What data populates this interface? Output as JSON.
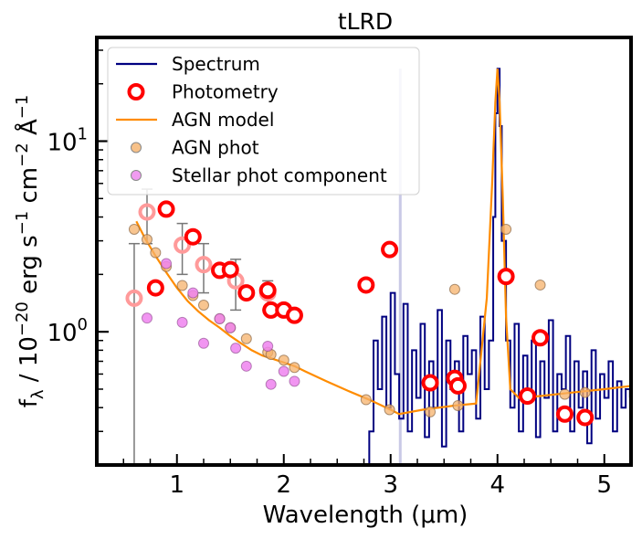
{
  "chart_data": {
    "type": "line",
    "title": "tLRD",
    "xlabel": "Wavelength (μm)",
    "ylabel_parts": {
      "f": "f",
      "sub": "λ",
      "mid": " / 10",
      "exp1": "−20",
      "mid2": " erg s",
      "exp2": "−1",
      "mid3": " cm",
      "exp3": "−2",
      "mid4": " Å",
      "exp4": "−1"
    },
    "xlim": [
      0.25,
      5.25
    ],
    "ylim": [
      0.2,
      35
    ],
    "yscale": "log",
    "x_ticks": [
      1,
      2,
      3,
      4,
      5
    ],
    "x_tick_labels": [
      "1",
      "2",
      "3",
      "4",
      "5"
    ],
    "y_major_ticks": [
      1,
      10
    ],
    "y_tick_labels": [
      {
        "base": "10",
        "exp": "0"
      },
      {
        "base": "10",
        "exp": "1"
      }
    ],
    "legend": {
      "position": "top-left",
      "entries": [
        {
          "label": "Spectrum",
          "kind": "line",
          "color": "#000080"
        },
        {
          "label": "Photometry",
          "kind": "ring",
          "color": "#ff0000"
        },
        {
          "label": "AGN model",
          "kind": "line",
          "color": "#ff8c00"
        },
        {
          "label": "AGN phot",
          "kind": "dot",
          "color": "#f5b26b"
        },
        {
          "label": "Stellar phot component",
          "kind": "dot",
          "color": "#ee82ee"
        }
      ]
    },
    "colors": {
      "spectrum": "#000080",
      "photometry": "#ff0000",
      "photometry_faded": "#ff9a9a",
      "agn_model": "#ff8c00",
      "agn_phot": "#f5b26b",
      "stellar_phot": "#ee82ee",
      "errorbar": "#777777"
    },
    "agn_model": {
      "x": [
        0.62,
        0.7,
        0.8,
        0.9,
        1.0,
        1.1,
        1.2,
        1.3,
        1.4,
        1.5,
        1.6,
        1.7,
        1.8,
        1.9,
        2.0,
        2.1,
        2.2,
        2.4,
        2.6,
        2.8,
        3.0,
        3.08,
        3.3,
        3.6,
        3.8,
        3.9,
        3.95,
        3.98,
        4.0,
        4.02,
        4.05,
        4.08,
        4.12,
        4.2,
        4.4,
        4.7,
        5.0,
        5.25
      ],
      "y": [
        3.8,
        3.1,
        2.5,
        2.05,
        1.7,
        1.45,
        1.28,
        1.15,
        1.05,
        0.95,
        0.87,
        0.8,
        0.75,
        0.72,
        0.69,
        0.66,
        0.62,
        0.55,
        0.49,
        0.44,
        0.39,
        0.37,
        0.39,
        0.41,
        0.42,
        1.5,
        6.0,
        16.0,
        24.0,
        16.0,
        5.0,
        1.2,
        0.5,
        0.45,
        0.46,
        0.48,
        0.5,
        0.52
      ]
    },
    "photometry": [
      {
        "x": 0.8,
        "y": 1.7
      },
      {
        "x": 0.9,
        "y": 4.4
      },
      {
        "x": 1.15,
        "y": 3.15
      },
      {
        "x": 1.4,
        "y": 2.1
      },
      {
        "x": 1.5,
        "y": 2.12
      },
      {
        "x": 1.65,
        "y": 1.6
      },
      {
        "x": 1.85,
        "y": 1.65
      },
      {
        "x": 1.88,
        "y": 1.3
      },
      {
        "x": 2.0,
        "y": 1.3
      },
      {
        "x": 2.1,
        "y": 1.22
      },
      {
        "x": 2.77,
        "y": 1.76
      },
      {
        "x": 2.99,
        "y": 2.7
      },
      {
        "x": 3.37,
        "y": 0.54
      },
      {
        "x": 3.6,
        "y": 0.57
      },
      {
        "x": 3.63,
        "y": 0.52
      },
      {
        "x": 4.08,
        "y": 1.95
      },
      {
        "x": 4.28,
        "y": 0.46
      },
      {
        "x": 4.4,
        "y": 0.93
      },
      {
        "x": 4.63,
        "y": 0.37
      },
      {
        "x": 4.82,
        "y": 0.355
      }
    ],
    "photometry_faded": [
      {
        "x": 0.6,
        "y": 1.5,
        "ylo": 0.2,
        "yhi": 2.9
      },
      {
        "x": 0.72,
        "y": 4.25,
        "ylo": 2.9,
        "yhi": 5.6
      },
      {
        "x": 1.05,
        "y": 2.85,
        "ylo": 2.0,
        "yhi": 3.7
      },
      {
        "x": 1.25,
        "y": 2.25,
        "ylo": 1.6,
        "yhi": 2.9
      },
      {
        "x": 1.55,
        "y": 1.85,
        "ylo": 1.3,
        "yhi": 2.4
      },
      {
        "x": 1.85,
        "y": 1.6,
        "ylo": 1.3,
        "yhi": 1.85
      }
    ],
    "agn_phot": [
      {
        "x": 0.6,
        "y": 3.45
      },
      {
        "x": 0.72,
        "y": 3.05
      },
      {
        "x": 0.8,
        "y": 2.6
      },
      {
        "x": 0.9,
        "y": 2.2
      },
      {
        "x": 1.05,
        "y": 1.75
      },
      {
        "x": 1.15,
        "y": 1.55
      },
      {
        "x": 1.25,
        "y": 1.38
      },
      {
        "x": 1.4,
        "y": 1.17
      },
      {
        "x": 1.5,
        "y": 1.05
      },
      {
        "x": 1.65,
        "y": 0.92
      },
      {
        "x": 1.85,
        "y": 0.78
      },
      {
        "x": 1.88,
        "y": 0.76
      },
      {
        "x": 2.0,
        "y": 0.71
      },
      {
        "x": 2.1,
        "y": 0.65
      },
      {
        "x": 2.77,
        "y": 0.44
      },
      {
        "x": 2.99,
        "y": 0.39
      },
      {
        "x": 3.37,
        "y": 0.38
      },
      {
        "x": 3.6,
        "y": 1.67
      },
      {
        "x": 3.63,
        "y": 0.41
      },
      {
        "x": 4.08,
        "y": 3.45
      },
      {
        "x": 4.28,
        "y": 0.45
      },
      {
        "x": 4.4,
        "y": 1.76
      },
      {
        "x": 4.63,
        "y": 0.47
      },
      {
        "x": 4.82,
        "y": 0.48
      }
    ],
    "stellar_phot": [
      {
        "x": 0.72,
        "y": 1.18
      },
      {
        "x": 0.9,
        "y": 2.28
      },
      {
        "x": 1.05,
        "y": 1.12
      },
      {
        "x": 1.15,
        "y": 1.6
      },
      {
        "x": 1.25,
        "y": 0.87
      },
      {
        "x": 1.4,
        "y": 1.17
      },
      {
        "x": 1.5,
        "y": 1.05
      },
      {
        "x": 1.55,
        "y": 0.82
      },
      {
        "x": 1.65,
        "y": 0.66
      },
      {
        "x": 1.85,
        "y": 0.84
      },
      {
        "x": 1.88,
        "y": 0.53
      },
      {
        "x": 2.0,
        "y": 0.62
      },
      {
        "x": 2.1,
        "y": 0.55
      }
    ],
    "spectrum": {
      "description_free_note": "",
      "x": [
        2.8,
        2.84,
        2.88,
        2.92,
        2.96,
        3.0,
        3.04,
        3.08,
        3.12,
        3.16,
        3.2,
        3.24,
        3.28,
        3.32,
        3.36,
        3.4,
        3.44,
        3.48,
        3.52,
        3.56,
        3.6,
        3.64,
        3.68,
        3.72,
        3.76,
        3.8,
        3.84,
        3.88,
        3.92,
        3.96,
        3.98,
        4.0,
        4.02,
        4.04,
        4.08,
        4.12,
        4.16,
        4.2,
        4.24,
        4.28,
        4.32,
        4.36,
        4.4,
        4.44,
        4.48,
        4.52,
        4.56,
        4.6,
        4.64,
        4.68,
        4.72,
        4.76,
        4.8,
        4.84,
        4.88,
        4.92,
        4.96,
        5.0,
        5.04,
        5.08,
        5.12,
        5.16,
        5.2,
        5.24
      ],
      "y": [
        0.3,
        0.9,
        0.5,
        1.2,
        0.4,
        1.6,
        0.6,
        0.35,
        1.4,
        0.3,
        0.8,
        0.45,
        1.1,
        0.28,
        0.7,
        0.4,
        1.3,
        0.25,
        0.9,
        0.5,
        0.7,
        0.3,
        0.95,
        0.6,
        0.8,
        0.35,
        1.2,
        0.5,
        0.9,
        4.0,
        14.0,
        24.0,
        12.0,
        3.0,
        0.9,
        0.4,
        1.1,
        0.3,
        0.75,
        0.5,
        0.9,
        0.28,
        0.7,
        0.45,
        1.15,
        0.3,
        0.6,
        0.5,
        0.95,
        0.3,
        0.7,
        0.4,
        0.62,
        0.26,
        0.8,
        0.35,
        0.6,
        0.45,
        0.7,
        0.3,
        0.55,
        0.4,
        0.5,
        0.45
      ]
    },
    "spectrum_faded_spike": {
      "x": 3.09,
      "y": 24.0,
      "color": "#c9c9e6"
    }
  }
}
